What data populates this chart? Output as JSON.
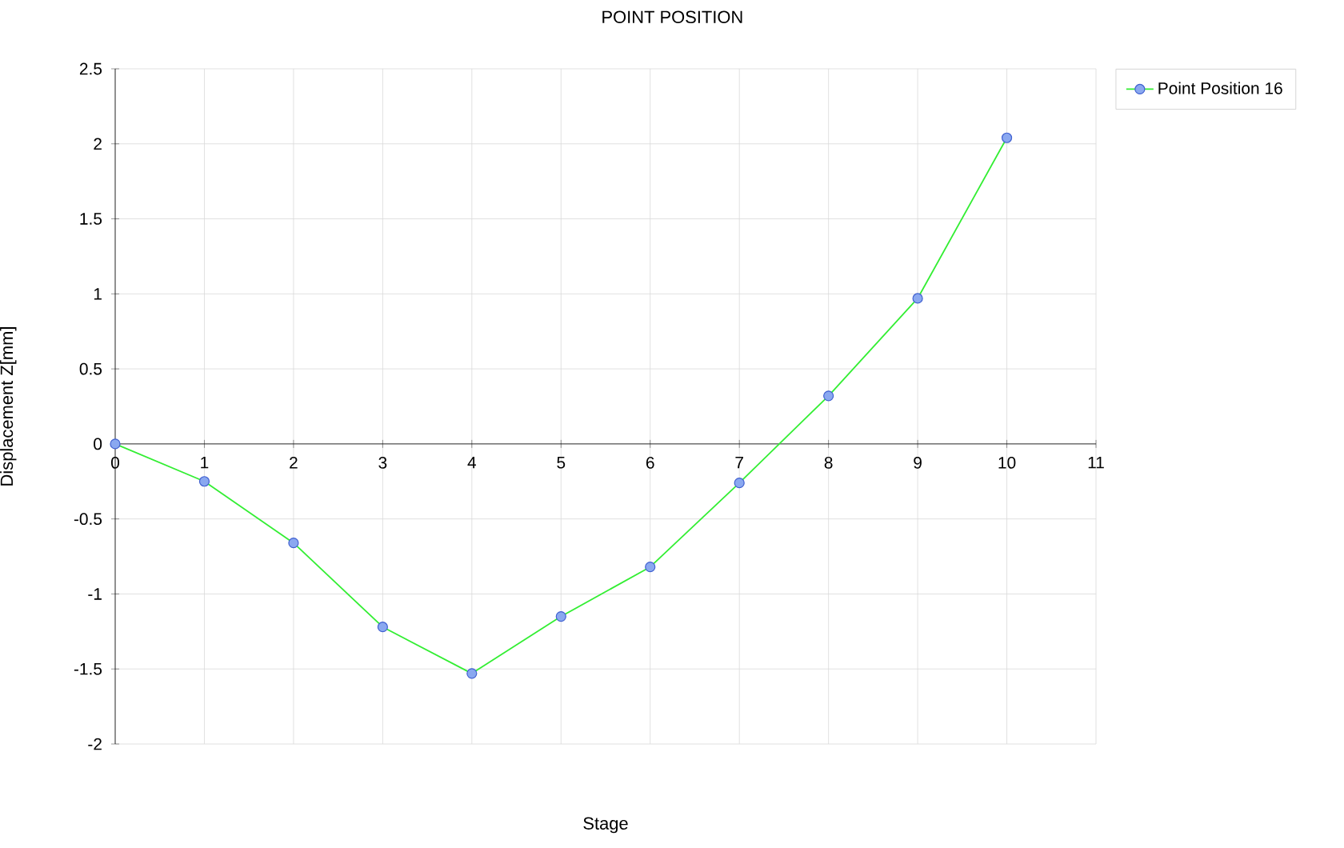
{
  "chart_data": {
    "type": "line",
    "title": "POINT POSITION",
    "xlabel": "Stage",
    "ylabel": "Displacement Z[mm]",
    "x": [
      0,
      1,
      2,
      3,
      4,
      5,
      6,
      7,
      8,
      9,
      10
    ],
    "series": [
      {
        "name": "Point Position 16",
        "color": "#33ee33",
        "values": [
          0,
          -0.25,
          -0.66,
          -1.22,
          -1.53,
          -1.15,
          -0.82,
          -0.26,
          0.32,
          0.97,
          2.04
        ]
      }
    ],
    "xlim": [
      0,
      11
    ],
    "ylim": [
      -2,
      2.5
    ],
    "xticks": [
      0,
      1,
      2,
      3,
      4,
      5,
      6,
      7,
      8,
      9,
      10,
      11
    ],
    "yticks": [
      -2,
      -1.5,
      -1,
      -0.5,
      0,
      0.5,
      1,
      1.5,
      2,
      2.5
    ],
    "grid": true,
    "legend": "top right",
    "marker": "circle",
    "line_style": "solid"
  }
}
